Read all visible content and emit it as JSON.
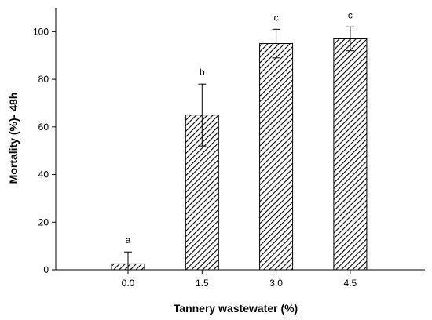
{
  "chart_data": {
    "type": "bar",
    "categories": [
      "0.0",
      "1.5",
      "3.0",
      "4.5"
    ],
    "values": [
      2.5,
      65,
      95,
      97
    ],
    "errors": [
      5,
      13,
      6,
      5
    ],
    "significance": [
      "a",
      "b",
      "c",
      "c"
    ],
    "xlabel": "Tannery wastewater (%)",
    "ylabel": "Mortality (%)- 48h",
    "ylim": [
      0,
      110
    ],
    "yticks": [
      0,
      20,
      40,
      60,
      80,
      100
    ],
    "grid": false,
    "bar_fill": "diagonal-hatch",
    "colors": {
      "bar_stroke": "#000000",
      "hatch": "#000000",
      "background": "#ffffff"
    }
  }
}
